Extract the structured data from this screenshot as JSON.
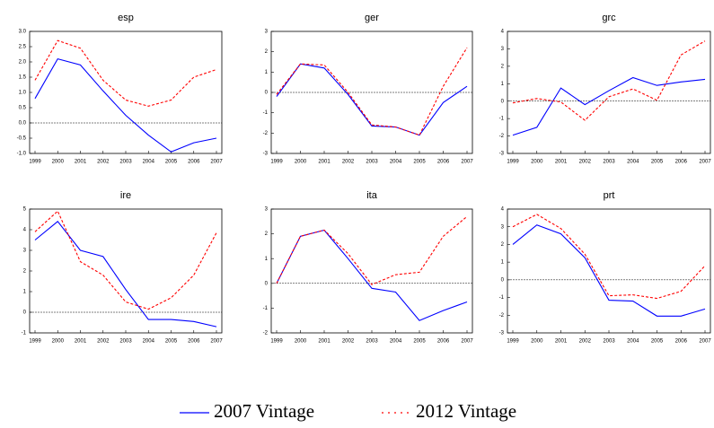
{
  "chart_data": [
    {
      "type": "line",
      "title": "esp",
      "categories": [
        "1999",
        "2000",
        "2001",
        "2002",
        "2003",
        "2004",
        "2005",
        "2006",
        "2007"
      ],
      "ylim": [
        -1,
        3
      ],
      "yticks": [
        {
          "value": -1,
          "label": "-1.0"
        },
        -0.5,
        {
          "value": 0,
          "label": "0.0"
        },
        0.5,
        {
          "value": 1,
          "label": "1.0"
        },
        1.5,
        {
          "value": 2,
          "label": "2.0"
        },
        2.5,
        {
          "value": 3,
          "label": "3.0"
        }
      ],
      "zero_line": true,
      "series": [
        {
          "values": [
            0.8,
            2.1,
            1.9,
            1.05,
            0.25,
            -0.4,
            -0.95,
            -0.65,
            -0.5
          ]
        },
        {
          "values": [
            1.4,
            2.7,
            2.45,
            1.4,
            0.75,
            0.55,
            0.75,
            1.5,
            1.75
          ]
        }
      ]
    },
    {
      "type": "line",
      "title": "ger",
      "categories": [
        "1999",
        "2000",
        "2001",
        "2002",
        "2003",
        "2004",
        "2005",
        "2006",
        "2007"
      ],
      "ylim": [
        -3,
        3
      ],
      "yticks": [
        -3,
        -2,
        -1,
        0,
        1,
        2,
        3
      ],
      "zero_line": true,
      "series": [
        {
          "values": [
            -0.2,
            1.4,
            1.2,
            -0.1,
            -1.65,
            -1.7,
            -2.1,
            -0.5,
            0.3
          ]
        },
        {
          "values": [
            -0.1,
            1.4,
            1.35,
            0,
            -1.6,
            -1.7,
            -2.1,
            0.3,
            2.2
          ]
        }
      ]
    },
    {
      "type": "line",
      "title": "grc",
      "categories": [
        "1999",
        "2000",
        "2001",
        "2002",
        "2003",
        "2004",
        "2005",
        "2006",
        "2007"
      ],
      "ylim": [
        -3,
        4
      ],
      "yticks": [
        -3,
        -2,
        -1,
        0,
        1,
        2,
        3,
        4
      ],
      "zero_line": true,
      "series": [
        {
          "values": [
            -1.95,
            -1.5,
            0.75,
            -0.2,
            0.6,
            1.35,
            0.9,
            1.1,
            1.25
          ]
        },
        {
          "values": [
            -0.1,
            0.15,
            -0.05,
            -1.1,
            0.25,
            0.7,
            0.05,
            2.65,
            3.45
          ]
        }
      ]
    },
    {
      "type": "line",
      "title": "ire",
      "categories": [
        "1999",
        "2000",
        "2001",
        "2002",
        "2003",
        "2004",
        "2005",
        "2006",
        "2007"
      ],
      "ylim": [
        -1,
        5
      ],
      "yticks": [
        -1,
        0,
        1,
        2,
        3,
        4,
        5
      ],
      "zero_line": true,
      "series": [
        {
          "values": [
            3.5,
            4.4,
            3.0,
            2.7,
            1.1,
            -0.35,
            -0.35,
            -0.45,
            -0.7
          ]
        },
        {
          "values": [
            3.9,
            4.9,
            2.45,
            1.8,
            0.5,
            0.15,
            0.7,
            1.8,
            3.85
          ]
        }
      ]
    },
    {
      "type": "line",
      "title": "ita",
      "categories": [
        "1999",
        "2000",
        "2001",
        "2002",
        "2003",
        "2004",
        "2005",
        "2006",
        "2007"
      ],
      "ylim": [
        -2,
        3
      ],
      "yticks": [
        -2,
        -1,
        0,
        1,
        2,
        3
      ],
      "zero_line": true,
      "series": [
        {
          "values": [
            0,
            1.9,
            2.15,
            1.0,
            -0.2,
            -0.35,
            -1.5,
            -1.1,
            -0.75
          ]
        },
        {
          "values": [
            0,
            1.9,
            2.15,
            1.2,
            -0.05,
            0.35,
            0.45,
            1.9,
            2.7
          ]
        }
      ]
    },
    {
      "type": "line",
      "title": "prt",
      "categories": [
        "1999",
        "2000",
        "2001",
        "2002",
        "2003",
        "2004",
        "2005",
        "2006",
        "2007"
      ],
      "ylim": [
        -3,
        4
      ],
      "yticks": [
        -3,
        -2,
        -1,
        0,
        1,
        2,
        3,
        4
      ],
      "zero_line": true,
      "series": [
        {
          "values": [
            2.0,
            3.1,
            2.6,
            1.25,
            -1.15,
            -1.2,
            -2.05,
            -2.05,
            -1.65
          ]
        },
        {
          "values": [
            3.0,
            3.7,
            2.9,
            1.45,
            -0.9,
            -0.85,
            -1.05,
            -0.65,
            0.8
          ]
        }
      ]
    }
  ],
  "legend": [
    {
      "name": "2007 Vintage",
      "color": "#0000ff",
      "dashed": false
    },
    {
      "name": "2012 Vintage",
      "color": "#ff0000",
      "dashed": true
    }
  ]
}
